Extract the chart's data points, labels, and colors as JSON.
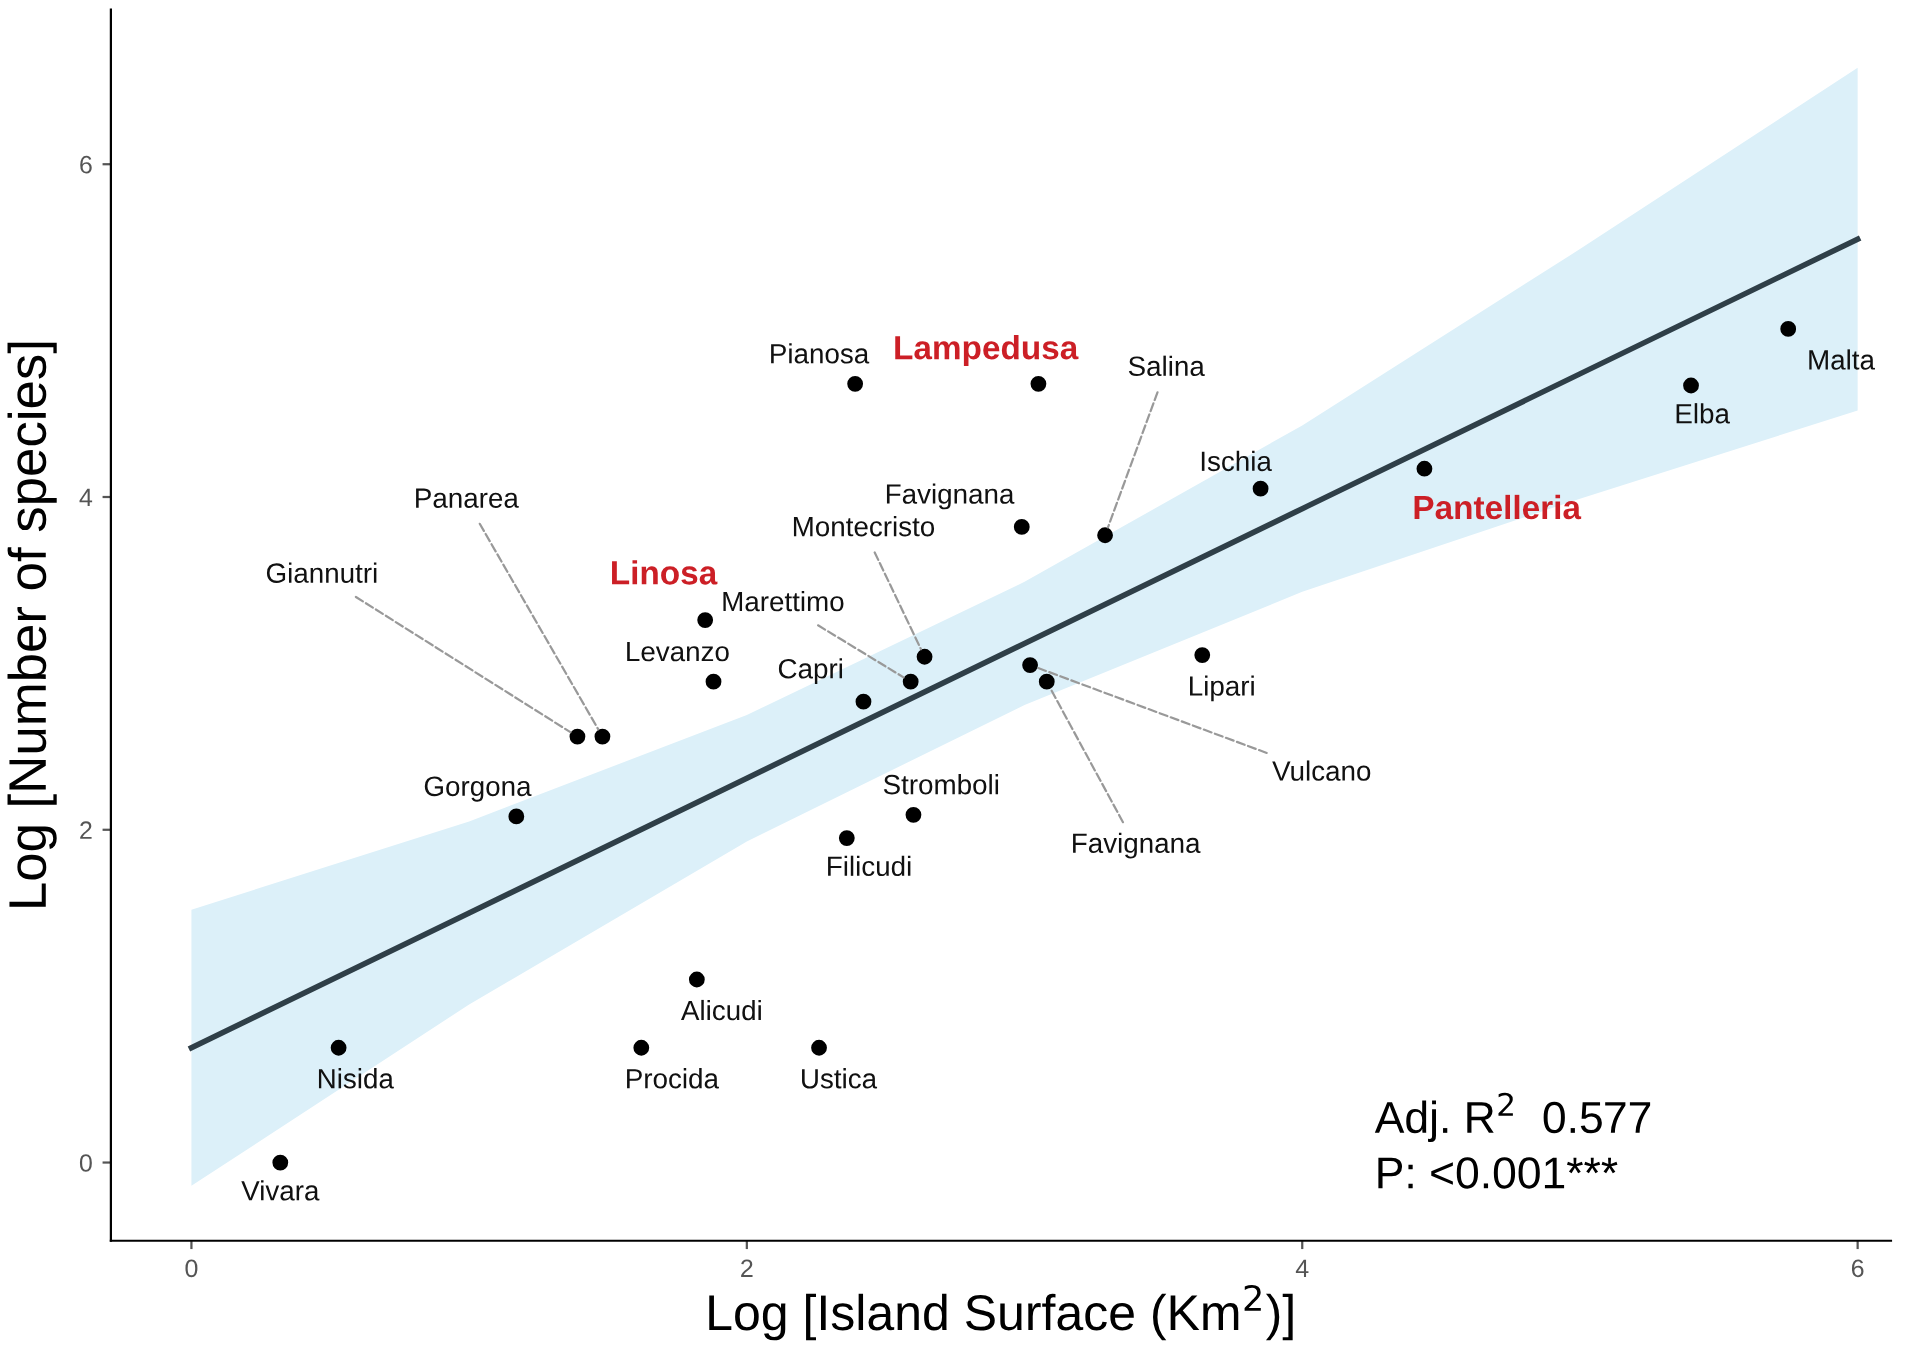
{
  "chart_data": {
    "type": "scatter",
    "xlabel": "Log [Island Surface (Km$^{2}$)]",
    "ylabel": "Log [Number of species]",
    "xlim": [
      -0.29,
      6.12
    ],
    "ylim": [
      -0.47,
      6.93
    ],
    "xticks": [
      0,
      2,
      4,
      6
    ],
    "yticks": [
      0,
      2,
      4,
      6
    ],
    "grid": false,
    "series": [
      {
        "color": "#000000",
        "marker": "circle",
        "x": [
          0.32,
          0.53,
          1.62,
          1.82,
          2.26,
          1.17,
          2.36,
          2.6,
          1.39,
          1.48,
          1.85,
          1.88,
          2.42,
          2.59,
          2.64,
          3.02,
          3.08,
          3.64,
          2.39,
          3.05,
          2.99,
          3.29,
          3.85,
          4.44,
          5.4,
          5.75
        ],
        "values": [
          0.0,
          0.69,
          0.69,
          1.1,
          0.69,
          2.08,
          1.95,
          2.09,
          2.56,
          2.56,
          3.26,
          2.89,
          2.77,
          2.89,
          3.04,
          2.99,
          2.89,
          3.05,
          4.68,
          4.68,
          3.82,
          3.77,
          4.05,
          4.17,
          4.67,
          5.01
        ]
      },
      {
        "type": "line",
        "color": "#2f3f48",
        "line_style": "solid",
        "marker": "none",
        "x": [
          0,
          1,
          2,
          3,
          4,
          5,
          6
        ],
        "values": [
          0.69,
          1.5,
          2.31,
          3.12,
          3.93,
          4.74,
          5.55
        ],
        "lower": [
          -0.14,
          0.95,
          1.93,
          2.75,
          3.43,
          3.99,
          4.52
        ],
        "upper": [
          1.52,
          2.05,
          2.69,
          3.49,
          4.43,
          5.49,
          6.58
        ]
      }
    ],
    "annotations": [
      {
        "text": "Vivara",
        "x": 0.32,
        "y": 0.0
      },
      {
        "text": "Nisida",
        "x": 0.53,
        "y": 0.69
      },
      {
        "text": "Procida",
        "x": 1.62,
        "y": 0.69
      },
      {
        "text": "Alicudi",
        "x": 1.82,
        "y": 1.1
      },
      {
        "text": "Ustica",
        "x": 2.26,
        "y": 0.69
      },
      {
        "text": "Gorgona",
        "x": 1.17,
        "y": 2.08
      },
      {
        "text": "Filicudi",
        "x": 2.36,
        "y": 1.95
      },
      {
        "text": "Stromboli",
        "x": 2.6,
        "y": 2.09
      },
      {
        "text": "Giannutri",
        "x": 1.39,
        "y": 2.56
      },
      {
        "text": "Panarea",
        "x": 1.48,
        "y": 2.56
      },
      {
        "text": "Linosa",
        "x": 1.85,
        "y": 3.26
      },
      {
        "text": "Levanzo",
        "x": 1.88,
        "y": 2.89
      },
      {
        "text": "Capri",
        "x": 2.42,
        "y": 2.77
      },
      {
        "text": "Marettimo",
        "x": 2.59,
        "y": 2.89
      },
      {
        "text": "Montecristo",
        "x": 2.64,
        "y": 3.04
      },
      {
        "text": "Vulcano",
        "x": 3.02,
        "y": 2.99
      },
      {
        "text": "Favignana",
        "x": 3.08,
        "y": 2.89
      },
      {
        "text": "Lipari",
        "x": 3.64,
        "y": 3.05
      },
      {
        "text": "Pianosa",
        "x": 2.39,
        "y": 4.68
      },
      {
        "text": "Lampedusa",
        "x": 3.05,
        "y": 4.68
      },
      {
        "text": "Favignana",
        "x": 2.99,
        "y": 3.82
      },
      {
        "text": "Salina",
        "x": 3.29,
        "y": 3.77
      },
      {
        "text": "Ischia",
        "x": 3.85,
        "y": 4.05
      },
      {
        "text": "Pantelleria",
        "x": 4.44,
        "y": 4.17
      },
      {
        "text": "Elba",
        "x": 5.4,
        "y": 4.67
      },
      {
        "text": "Malta",
        "x": 5.75,
        "y": 5.01
      },
      "Adj. R$^{2}$  0.577",
      "P: <0.001***"
    ]
  }
}
